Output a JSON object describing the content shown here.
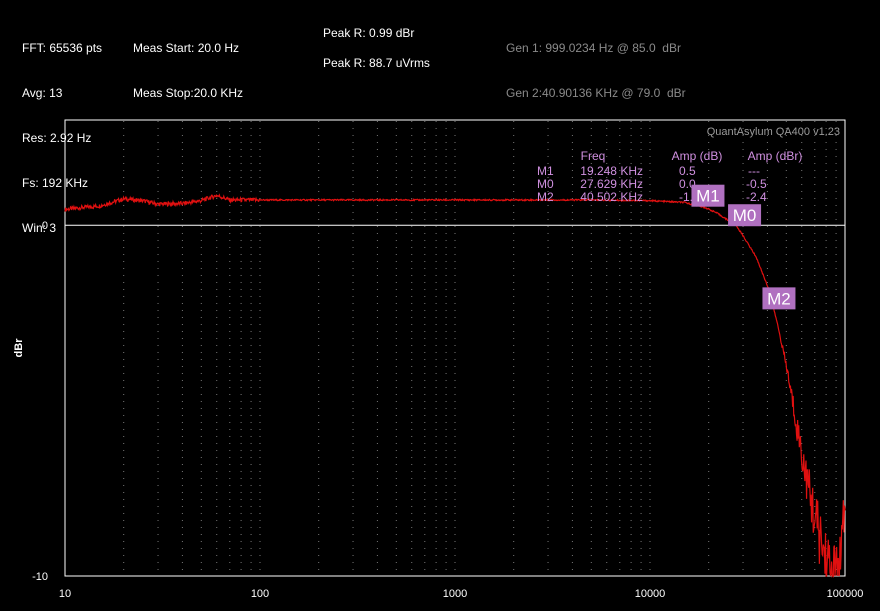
{
  "header": {
    "col1": [
      "FFT: 65536 pts",
      "Avg: 13",
      "Res: 2.92 Hz",
      "Fs: 192 KHz",
      "Win: 3"
    ],
    "col2": [
      "Meas Start: 20.0 Hz",
      "Meas Stop:20.0 KHz"
    ],
    "peak_db": "Peak R: 0.99 dBr",
    "peak_rms": "Peak R: 88.7 uVrms",
    "gen1": "Gen 1: 999.0234 Hz @ 85.0  dBr",
    "gen2": "Gen 2:40.90136 KHz @ 79.0  dBr"
  },
  "chart_data": {
    "type": "line",
    "watermark": "QuantAsylum QA400 v1.23",
    "ylabel": "dBr",
    "xscale": "log",
    "xlim": [
      10,
      100000
    ],
    "ylim": [
      -10,
      3
    ],
    "xticks": [
      "10",
      "100",
      "1000",
      "10000",
      "100000"
    ],
    "yticks": [
      "0",
      "-10"
    ],
    "grid": true,
    "series_color": "#e01010",
    "series": [
      {
        "x": [
          10,
          12,
          15,
          20,
          25,
          30,
          40,
          50,
          60,
          70,
          100,
          200,
          300,
          400,
          500,
          700,
          1000,
          2000,
          5000,
          10000,
          15000,
          19248,
          22000,
          25000,
          27629,
          30000,
          35000,
          40502,
          45000,
          50000,
          55000,
          60000,
          65000,
          70000,
          75000,
          80000,
          85000,
          90000,
          95000,
          100000
        ],
        "y": [
          0.45,
          0.5,
          0.55,
          0.75,
          0.7,
          0.6,
          0.62,
          0.7,
          0.85,
          0.72,
          0.72,
          0.72,
          0.72,
          0.72,
          0.72,
          0.72,
          0.72,
          0.72,
          0.72,
          0.7,
          0.65,
          0.5,
          0.35,
          0.15,
          0.0,
          -0.3,
          -0.9,
          -1.8,
          -2.8,
          -4.0,
          -5.3,
          -6.5,
          -7.5,
          -8.3,
          -9.0,
          -9.5,
          -9.9,
          -9.95,
          -9.6,
          -8.0
        ]
      }
    ],
    "markers": {
      "headers": [
        "Freq",
        "Amp (dB)",
        "Amp (dBr)"
      ],
      "rows": [
        {
          "name": "M1",
          "freq": "19.248 KHz",
          "amp_db": "0.5",
          "amp_dbr": "---",
          "x": 19248,
          "y": 0.5
        },
        {
          "name": "M0",
          "freq": "27.629 KHz",
          "amp_db": "0.0",
          "amp_dbr": "-0.5",
          "x": 27629,
          "y": 0.0
        },
        {
          "name": "M2",
          "freq": "40.502 KHz",
          "amp_db": "-1.8",
          "amp_dbr": "-2.4",
          "x": 40502,
          "y": -1.8
        }
      ]
    }
  }
}
